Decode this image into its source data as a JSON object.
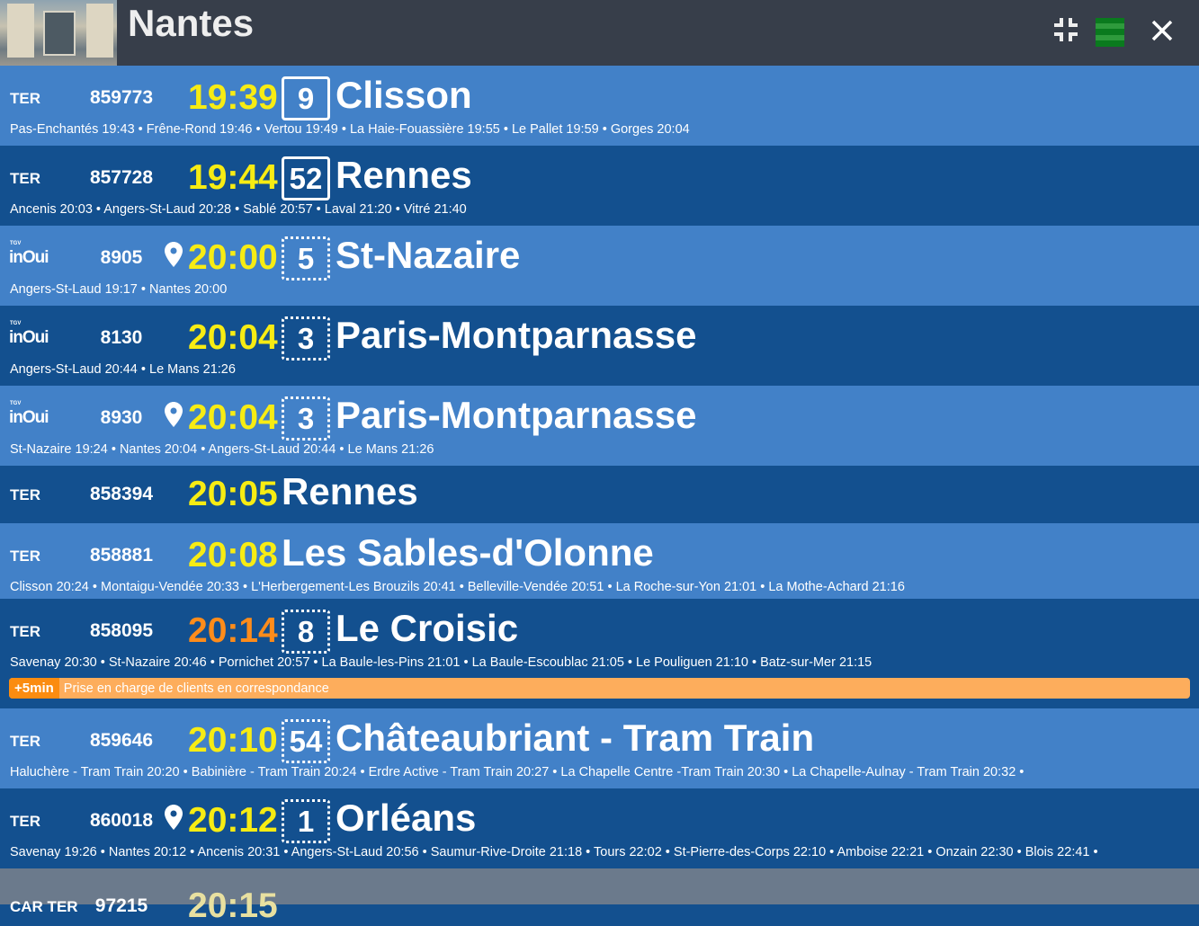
{
  "header": {
    "station": "Nantes",
    "icons": [
      "collapse-icon",
      "green-menu-icon",
      "close-icon"
    ],
    "menu_color": "#0a7a1e"
  },
  "colors": {
    "time": "#f7ec13",
    "time_late": "#ff8c1a",
    "row_light": "#4281c8",
    "row_dark": "#13508f",
    "delay": "#fdad5c"
  },
  "trains": [
    {
      "type": "TER",
      "number": "859773",
      "time": "19:39",
      "platform": "9",
      "destination": "Clisson",
      "stops": "Pas-Enchantés 19:43 • Frêne-Rond 19:46 • Vertou 19:49 • La Haie-Fouassière 19:55 • Le Pallet 19:59 • Gorges 20:04"
    },
    {
      "type": "TER",
      "number": "857728",
      "time": "19:44",
      "platform": "52",
      "destination": "Rennes",
      "stops": "Ancenis 20:03 • Angers-St-Laud 20:28 • Sablé 20:57 • Laval 21:20 • Vitré 21:40"
    },
    {
      "type": "inOui",
      "type_small": "TGV",
      "number": "8905",
      "time": "20:00",
      "platform": "5",
      "destination": "St-Nazaire",
      "stops": "Angers-St-Laud 19:17 • Nantes 20:00"
    },
    {
      "type": "inOui",
      "type_small": "TGV",
      "number": "8130",
      "time": "20:04",
      "platform": "3",
      "destination": "Paris-Montparnasse",
      "stops": "Angers-St-Laud 20:44 • Le Mans 21:26"
    },
    {
      "type": "inOui",
      "type_small": "TGV",
      "number": "8930",
      "time": "20:04",
      "platform": "3",
      "destination": "Paris-Montparnasse",
      "stops": "St-Nazaire 19:24 • Nantes 20:04 • Angers-St-Laud 20:44 • Le Mans 21:26"
    },
    {
      "type": "TER",
      "number": "858394",
      "time": "20:05",
      "destination": "Rennes"
    },
    {
      "type": "TER",
      "number": "858881",
      "time": "20:08",
      "destination": "Les Sables-d'Olonne",
      "stops": "Clisson 20:24 • Montaigu-Vendée 20:33 • L'Herbergement-Les Brouzils 20:41 • Belleville-Vendée 20:51 • La Roche-sur-Yon 21:01 • La Mothe-Achard 21:16"
    },
    {
      "type": "TER",
      "number": "858095",
      "time": "20:14",
      "platform": "8",
      "destination": "Le Croisic",
      "stops": "Savenay 20:30 • St-Nazaire 20:46 • Pornichet 20:57 • La Baule-les-Pins 21:01 • La Baule-Escoublac 21:05 • Le Pouliguen 21:10 • Batz-sur-Mer 21:15",
      "delay": "+5min",
      "delay_message": "Prise en charge de clients en correspondance"
    },
    {
      "type": "TER",
      "number": "859646",
      "time": "20:10",
      "platform": "54",
      "destination": "Châteaubriant - Tram Train",
      "stops": "Haluchère - Tram Train 20:20 • Babinière - Tram Train 20:24 • Erdre Active - Tram Train 20:27 • La Chapelle Centre -Tram Train 20:30 • La Chapelle-Aulnay - Tram Train 20:32 •"
    },
    {
      "type": "TER",
      "number": "860018",
      "time": "20:12",
      "platform": "1",
      "destination": "Orléans",
      "stops": "Savenay 19:26 • Nantes 20:12 • Ancenis 20:31 • Angers-St-Laud 20:56 • Saumur-Rive-Droite 21:18 • Tours 22:02 • St-Pierre-des-Corps 22:10 • Amboise 22:21 • Onzain 22:30 • Blois 22:41 •"
    },
    {
      "type": "CAR TER",
      "number": "97215",
      "time": "20:15"
    }
  ]
}
